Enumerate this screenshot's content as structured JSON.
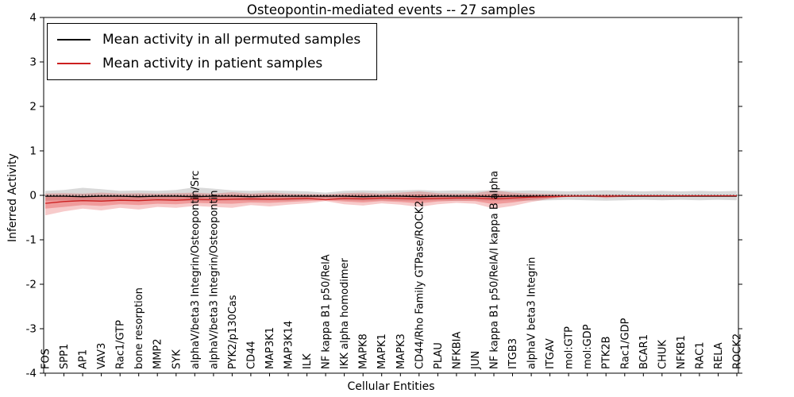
{
  "chart_data": {
    "type": "line",
    "title": "Osteopontin-mediated events -- 27 samples",
    "xlabel": "Cellular Entities",
    "ylabel": "Inferred Activity",
    "ylim": [
      -4,
      4
    ],
    "yticks": [
      -4,
      -3,
      -2,
      -1,
      0,
      1,
      2,
      3,
      4
    ],
    "grid": false,
    "legend_position": "upper left",
    "zero_line": {
      "style": "dotted",
      "color": "#000000",
      "y": 0
    },
    "categories": [
      "FOS",
      "SPP1",
      "AP1",
      "VAV3",
      "Rac1/GTP",
      "bone resorption",
      "MMP2",
      "SYK",
      "alphaV/beta3 Integrin/Osteopontin/Src",
      "alphaV/beta3 Integrin/Osteopontin",
      "PYK2/p130Cas",
      "CD44",
      "MAP3K1",
      "MAP3K14",
      "ILK",
      "NF kappa B1 p50/RelA",
      "IKK alpha homodimer",
      "MAPK8",
      "MAPK1",
      "MAPK3",
      "CD44/Rho Family GTPase/ROCK2",
      "PLAU",
      "NFKBIA",
      "JUN",
      "NF kappa B1 p50/RelA/I kappa B alpha",
      "ITGB3",
      "alphaV beta3 Integrin",
      "ITGAV",
      "mol:GTP",
      "mol:GDP",
      "PTK2B",
      "Rac1/GDP",
      "BCAR1",
      "CHUK",
      "NFKB1",
      "RAC1",
      "RELA",
      "ROCK2"
    ],
    "series": [
      {
        "id": "permuted",
        "name": "Mean activity in all permuted samples",
        "color": "#000000",
        "band_color": "#808080",
        "band_opacity": 0.3,
        "mean": [
          -0.02,
          -0.02,
          -0.03,
          -0.02,
          -0.02,
          -0.03,
          -0.02,
          -0.02,
          -0.03,
          -0.02,
          -0.02,
          -0.03,
          -0.02,
          -0.02,
          -0.02,
          -0.02,
          -0.02,
          -0.03,
          -0.02,
          -0.02,
          -0.03,
          -0.02,
          -0.02,
          -0.02,
          -0.03,
          -0.02,
          -0.02,
          -0.02,
          -0.02,
          -0.02,
          -0.02,
          -0.02,
          -0.02,
          -0.02,
          -0.02,
          -0.02,
          -0.02,
          -0.02
        ],
        "lower": [
          -0.12,
          -0.11,
          -0.13,
          -0.12,
          -0.11,
          -0.12,
          -0.11,
          -0.12,
          -0.13,
          -0.12,
          -0.11,
          -0.12,
          -0.11,
          -0.12,
          -0.1,
          -0.08,
          -0.11,
          -0.12,
          -0.11,
          -0.12,
          -0.12,
          -0.11,
          -0.12,
          -0.11,
          -0.12,
          -0.11,
          -0.12,
          -0.11,
          -0.1,
          -0.11,
          -0.12,
          -0.11,
          -0.1,
          -0.11,
          -0.1,
          -0.11,
          -0.1,
          -0.11
        ],
        "upper": [
          0.1,
          0.12,
          0.17,
          0.14,
          0.1,
          0.11,
          0.1,
          0.12,
          0.18,
          0.15,
          0.11,
          0.1,
          0.11,
          0.1,
          0.09,
          0.06,
          0.1,
          0.11,
          0.1,
          0.11,
          0.12,
          0.1,
          0.11,
          0.1,
          0.12,
          0.1,
          0.11,
          0.1,
          0.09,
          0.1,
          0.11,
          0.1,
          0.09,
          0.1,
          0.09,
          0.1,
          0.09,
          0.1
        ]
      },
      {
        "id": "patient",
        "name": "Mean activity in patient samples",
        "color": "#cc2020",
        "band_color": "#e03030",
        "band_opacity": 0.25,
        "inner_band_opacity": 0.3,
        "mean": [
          -0.18,
          -0.14,
          -0.12,
          -0.13,
          -0.11,
          -0.12,
          -0.1,
          -0.11,
          -0.09,
          -0.1,
          -0.09,
          -0.08,
          -0.09,
          -0.08,
          -0.07,
          -0.1,
          -0.07,
          -0.08,
          -0.06,
          -0.07,
          -0.08,
          -0.07,
          -0.06,
          -0.06,
          -0.08,
          -0.06,
          -0.04,
          -0.03,
          -0.02,
          -0.01,
          -0.02,
          -0.01,
          -0.01,
          -0.01,
          -0.01,
          -0.01,
          -0.01,
          -0.01
        ],
        "lower": [
          -0.45,
          -0.36,
          -0.3,
          -0.34,
          -0.28,
          -0.32,
          -0.26,
          -0.28,
          -0.24,
          -0.26,
          -0.28,
          -0.22,
          -0.25,
          -0.21,
          -0.18,
          -0.13,
          -0.2,
          -0.23,
          -0.18,
          -0.21,
          -0.26,
          -0.2,
          -0.17,
          -0.19,
          -0.3,
          -0.24,
          -0.15,
          -0.08,
          -0.03,
          -0.02,
          -0.06,
          -0.03,
          -0.02,
          -0.02,
          -0.02,
          -0.02,
          -0.02,
          -0.02
        ],
        "upper": [
          0.04,
          0.05,
          0.04,
          0.06,
          0.04,
          0.05,
          0.04,
          0.05,
          0.06,
          0.04,
          0.07,
          0.04,
          0.06,
          0.04,
          0.03,
          0.02,
          0.05,
          0.06,
          0.04,
          0.06,
          0.09,
          0.05,
          0.04,
          0.05,
          0.11,
          0.06,
          0.04,
          0.03,
          0.02,
          0.01,
          0.02,
          0.01,
          0.01,
          0.01,
          0.01,
          0.01,
          0.01,
          0.01
        ],
        "inner_lower": [
          -0.3,
          -0.26,
          -0.22,
          -0.24,
          -0.2,
          -0.22,
          -0.19,
          -0.2,
          -0.17,
          -0.18,
          -0.19,
          -0.16,
          -0.17,
          -0.15,
          -0.13,
          -0.11,
          -0.14,
          -0.16,
          -0.13,
          -0.15,
          -0.18,
          -0.14,
          -0.12,
          -0.13,
          -0.2,
          -0.16,
          -0.1,
          -0.06,
          -0.02,
          -0.02,
          -0.04,
          -0.02,
          -0.02,
          -0.02,
          -0.02,
          -0.02,
          -0.02,
          -0.02
        ],
        "inner_upper": [
          -0.02,
          -0.01,
          -0.02,
          -0.01,
          -0.02,
          -0.01,
          -0.02,
          -0.01,
          0.0,
          -0.01,
          0.01,
          -0.01,
          0.0,
          -0.01,
          -0.01,
          -0.02,
          0.0,
          0.01,
          -0.01,
          0.0,
          0.02,
          0.0,
          -0.01,
          0.0,
          0.03,
          0.01,
          0.0,
          0.0,
          -0.01,
          -0.01,
          0.0,
          -0.01,
          -0.01,
          -0.01,
          -0.01,
          -0.01,
          -0.01,
          -0.01
        ]
      }
    ]
  }
}
